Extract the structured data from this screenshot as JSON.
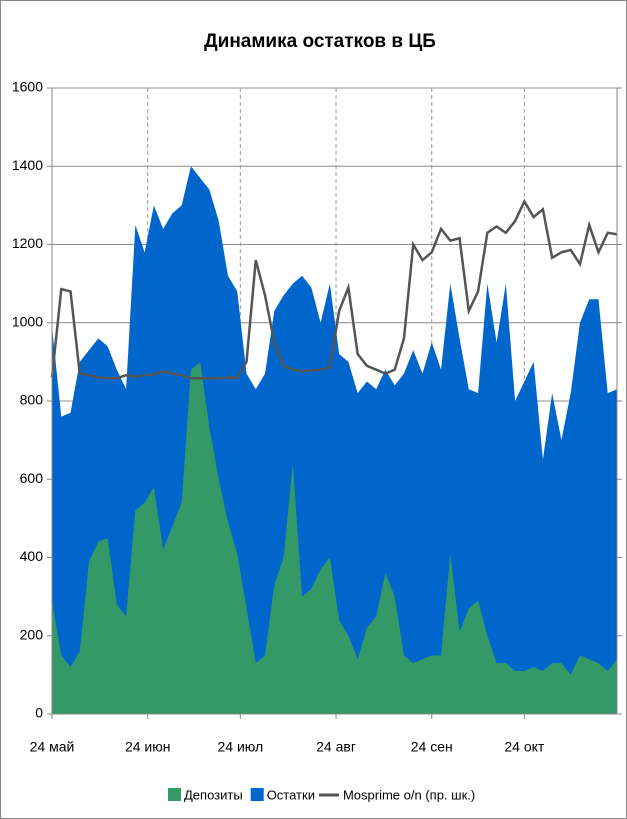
{
  "chart_data": {
    "type": "area",
    "title": "Динамика остатков в ЦБ",
    "xlim": [
      0,
      183
    ],
    "xticks": [
      {
        "value": 0,
        "label": "24 май"
      },
      {
        "value": 31,
        "label": "24 июн"
      },
      {
        "value": 61,
        "label": "24 июл"
      },
      {
        "value": 92,
        "label": "24 авг"
      },
      {
        "value": 123,
        "label": "24 сен"
      },
      {
        "value": 153,
        "label": "24 окт"
      }
    ],
    "ylim": [
      0,
      1600
    ],
    "yticks": [
      0,
      200,
      400,
      600,
      800,
      1000,
      1200,
      1400,
      1600
    ],
    "y2lim": [
      0,
      8
    ],
    "y2ticks": [
      0,
      1,
      2,
      3,
      4,
      5,
      6,
      7,
      8
    ],
    "grid": true,
    "legend": "bottom",
    "x": [
      0,
      3,
      6,
      9,
      12,
      15,
      18,
      21,
      24,
      27,
      30,
      33,
      36,
      39,
      42,
      45,
      48,
      51,
      54,
      57,
      60,
      63,
      66,
      69,
      72,
      75,
      78,
      81,
      84,
      87,
      90,
      93,
      96,
      99,
      102,
      105,
      108,
      111,
      114,
      117,
      120,
      123,
      126,
      129,
      132,
      135,
      138,
      141,
      144,
      147,
      150,
      153,
      156,
      159,
      162,
      165,
      168,
      171,
      174,
      177,
      180,
      183
    ],
    "series": [
      {
        "name": "Депозиты",
        "color": "#339966",
        "type": "area",
        "values": [
          290,
          150,
          120,
          160,
          390,
          440,
          450,
          280,
          250,
          520,
          540,
          580,
          420,
          480,
          540,
          880,
          900,
          730,
          600,
          490,
          410,
          270,
          130,
          150,
          330,
          400,
          640,
          300,
          320,
          370,
          400,
          240,
          200,
          140,
          220,
          250,
          360,
          300,
          150,
          130,
          140,
          150,
          150,
          410,
          210,
          270,
          290,
          200,
          130,
          130,
          110,
          110,
          120,
          110,
          130,
          130,
          100,
          150,
          140,
          130,
          110,
          140
        ]
      },
      {
        "name": "Остатки",
        "color": "#0066cc",
        "type": "area",
        "values": [
          990,
          760,
          770,
          900,
          930,
          960,
          940,
          880,
          830,
          1250,
          1180,
          1300,
          1240,
          1280,
          1300,
          1400,
          1370,
          1340,
          1260,
          1120,
          1080,
          870,
          830,
          870,
          1030,
          1070,
          1100,
          1120,
          1090,
          1000,
          1100,
          920,
          900,
          820,
          850,
          830,
          880,
          840,
          870,
          930,
          870,
          950,
          880,
          1100,
          960,
          830,
          820,
          1100,
          950,
          1100,
          800,
          850,
          900,
          650,
          820,
          700,
          820,
          1000,
          1060,
          1060,
          820,
          830
        ]
      },
      {
        "name": "Mosprime o/n (пр. шк.)",
        "color": "#555555",
        "type": "line",
        "axis": "y2",
        "values": [
          4.3,
          5.43,
          5.4,
          4.35,
          4.33,
          4.3,
          4.29,
          4.29,
          4.33,
          4.31,
          4.33,
          4.34,
          4.38,
          4.35,
          4.33,
          4.29,
          4.29,
          4.29,
          4.29,
          4.3,
          4.3,
          4.5,
          5.8,
          5.35,
          4.75,
          4.45,
          4.4,
          4.38,
          4.39,
          4.4,
          4.43,
          5.15,
          5.45,
          4.6,
          4.45,
          4.4,
          4.35,
          4.4,
          4.8,
          6.0,
          5.8,
          5.9,
          6.2,
          6.05,
          6.08,
          5.15,
          5.4,
          6.15,
          6.23,
          6.15,
          6.3,
          6.55,
          6.35,
          6.45,
          5.83,
          5.9,
          5.93,
          5.75,
          6.25,
          5.9,
          6.15,
          6.13
        ]
      }
    ]
  }
}
